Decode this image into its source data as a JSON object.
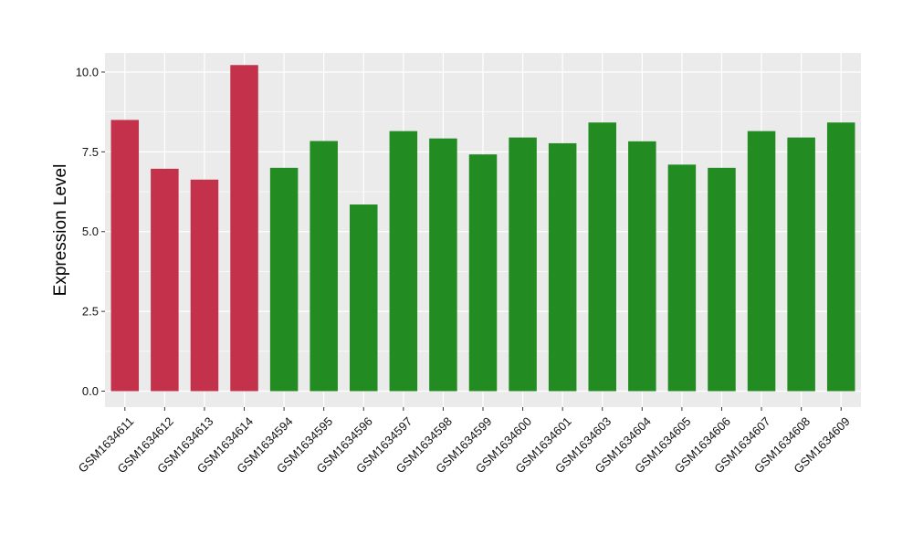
{
  "chart_data": {
    "type": "bar",
    "title": "",
    "xlabel": "",
    "ylabel": "Expression Level",
    "ylim": [
      -0.5,
      10.6
    ],
    "yticks": [
      0.0,
      2.5,
      5.0,
      7.5,
      10.0
    ],
    "ytick_labels": [
      "0.0",
      "2.5",
      "5.0",
      "7.5",
      "10.0"
    ],
    "grid": true,
    "legend": "none",
    "categories": [
      "GSM1634611",
      "GSM1634612",
      "GSM1634613",
      "GSM1634614",
      "GSM1634594",
      "GSM1634595",
      "GSM1634596",
      "GSM1634597",
      "GSM1634598",
      "GSM1634599",
      "GSM1634600",
      "GSM1634601",
      "GSM1634603",
      "GSM1634604",
      "GSM1634605",
      "GSM1634606",
      "GSM1634607",
      "GSM1634608",
      "GSM1634609"
    ],
    "values": [
      8.5,
      6.97,
      6.63,
      10.22,
      7.0,
      7.84,
      5.85,
      8.15,
      7.92,
      7.42,
      7.95,
      7.77,
      8.42,
      7.83,
      7.1,
      7.0,
      8.15,
      7.95,
      8.42
    ],
    "bar_colors": [
      "#c4314b",
      "#c4314b",
      "#c4314b",
      "#c4314b",
      "#228b22",
      "#228b22",
      "#228b22",
      "#228b22",
      "#228b22",
      "#228b22",
      "#228b22",
      "#228b22",
      "#228b22",
      "#228b22",
      "#228b22",
      "#228b22",
      "#228b22",
      "#228b22",
      "#228b22"
    ],
    "panel_background": "#ebebeb",
    "gridline_color": "#ffffff"
  }
}
